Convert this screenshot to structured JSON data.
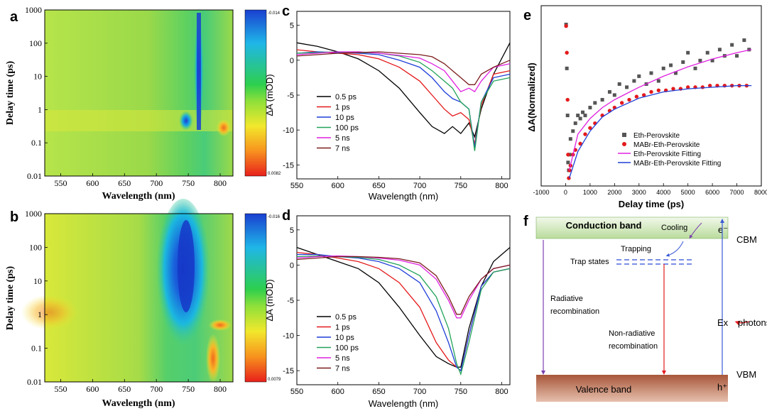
{
  "panels": {
    "a": {
      "letter": "a",
      "xlabel": "Wavelength (nm)",
      "ylabel": "Delay time (ps)",
      "xticks": [
        "550",
        "600",
        "650",
        "700",
        "750",
        "800"
      ],
      "yticks": [
        "1000",
        "100",
        "10",
        "1",
        "0.1",
        "0.01"
      ],
      "colorbar_max": "-0.014",
      "colorbar_min": "0.0082"
    },
    "b": {
      "letter": "b",
      "xlabel": "Wavelength (nm)",
      "ylabel": "Delay time (ps)",
      "xticks": [
        "550",
        "600",
        "650",
        "700",
        "750",
        "800"
      ],
      "yticks": [
        "1000",
        "100",
        "10",
        "1",
        "0.1",
        "0.01"
      ],
      "colorbar_max": "-0.016",
      "colorbar_min": "0.0079"
    },
    "c": {
      "letter": "c",
      "xlabel": "Wavelength (nm)",
      "ylabel": "ΔA (mOD)",
      "xticks": [
        "550",
        "600",
        "650",
        "700",
        "750",
        "800"
      ],
      "yticks": [
        "5",
        "0",
        "-5",
        "-10",
        "-15"
      ]
    },
    "d": {
      "letter": "d",
      "xlabel": "Wavelength (nm)",
      "ylabel": "ΔA (mOD)",
      "xticks": [
        "550",
        "600",
        "650",
        "700",
        "750",
        "800"
      ],
      "yticks": [
        "5",
        "0",
        "-5",
        "-10",
        "-15"
      ]
    },
    "e": {
      "letter": "e",
      "xlabel": "Delay time (ps)",
      "ylabel": "ΔA(Normalized)",
      "xticks": [
        "-1000",
        "0",
        "1000",
        "2000",
        "3000",
        "4000",
        "5000",
        "6000",
        "7000",
        "8000"
      ]
    },
    "f": {
      "letter": "f",
      "conduction_band": "Conduction band",
      "valence_band": "Valence band",
      "cbm": "CBM",
      "vbm": "VBM",
      "cooling": "Cooling",
      "trapping": "Trapping",
      "trap_states": "Trap states",
      "radiative_1": "Radiative",
      "radiative_2": "recombination",
      "nonrad_1": "Non-radiative",
      "nonrad_2": "recombination",
      "ex": "Ex",
      "photons": "photons",
      "electron": "e⁻",
      "hole": "h⁺"
    }
  },
  "colors": {
    "black": "#000000",
    "red": "#e41a1c",
    "blue": "#1f3fd8",
    "green": "#23a35a",
    "magenta": "#e020e0",
    "brown": "#7b1c1c",
    "purple": "#7b3fb0",
    "cb_green": "#cfe7b8",
    "vb_brown": "#c8866a"
  },
  "chart_data": [
    {
      "panel": "a",
      "type": "heatmap",
      "xlabel": "Wavelength (nm)",
      "ylabel": "Delay time (ps)",
      "xlim": [
        525,
        820
      ],
      "ylim": [
        0.01,
        1000
      ],
      "yscale": "log",
      "colorbar_range": [
        -0.014,
        0.0082
      ],
      "features": [
        {
          "label": "bleach band",
          "x_nm": 766,
          "y_range_ps": [
            0.3,
            1000
          ],
          "value": "min"
        },
        {
          "label": "early-time band",
          "x_nm": 750,
          "y_range_ps": [
            0.4,
            1
          ],
          "value": "negative"
        }
      ]
    },
    {
      "panel": "b",
      "type": "heatmap",
      "xlabel": "Wavelength (nm)",
      "ylabel": "Delay time (ps)",
      "xlim": [
        525,
        820
      ],
      "ylim": [
        0.01,
        1000
      ],
      "yscale": "log",
      "colorbar_range": [
        -0.016,
        0.0079
      ],
      "features": [
        {
          "label": "bleach band",
          "x_nm": 748,
          "y_range_ps": [
            0.5,
            1000
          ],
          "value": "min"
        }
      ]
    },
    {
      "panel": "c",
      "type": "line",
      "xlabel": "Wavelength (nm)",
      "ylabel": "ΔA (mOD)",
      "xlim": [
        550,
        810
      ],
      "ylim": [
        -17,
        7
      ],
      "x": [
        550,
        575,
        600,
        625,
        650,
        675,
        700,
        715,
        730,
        740,
        750,
        760,
        767,
        775,
        790,
        810
      ],
      "series": [
        {
          "name": "0.5 ps",
          "values": [
            2.5,
            2.0,
            1.2,
            0.2,
            -1.5,
            -4.0,
            -7.5,
            -9.5,
            -10.5,
            -9.5,
            -10.5,
            -9.0,
            -11.0,
            -7.0,
            -2.0,
            2.5
          ]
        },
        {
          "name": "1 ps",
          "values": [
            1.5,
            1.2,
            1.0,
            0.8,
            0.2,
            -1.0,
            -3.0,
            -5.0,
            -7.0,
            -8.0,
            -7.5,
            -8.5,
            -12.0,
            -6.5,
            -2.0,
            -1.5
          ]
        },
        {
          "name": "10 ps",
          "values": [
            1.0,
            1.2,
            1.1,
            1.0,
            0.8,
            0.0,
            -1.0,
            -2.5,
            -4.5,
            -5.5,
            -6.0,
            -7.0,
            -12.5,
            -6.0,
            -2.5,
            -2.0
          ]
        },
        {
          "name": "100 ps",
          "values": [
            1.0,
            1.1,
            1.2,
            1.1,
            1.0,
            0.6,
            -0.3,
            -1.5,
            -3.0,
            -4.0,
            -6.0,
            -7.0,
            -13.0,
            -6.0,
            -3.0,
            -2.5
          ]
        },
        {
          "name": "5 ns",
          "values": [
            0.8,
            1.0,
            1.2,
            1.2,
            1.0,
            0.7,
            0.3,
            -0.5,
            -1.5,
            -3.0,
            -4.5,
            -4.0,
            -4.5,
            -3.0,
            -1.0,
            -0.5
          ]
        },
        {
          "name": "7 ns",
          "values": [
            0.6,
            0.8,
            1.0,
            1.1,
            1.2,
            1.0,
            0.8,
            0.5,
            -0.5,
            -1.5,
            -2.5,
            -3.5,
            -3.5,
            -2.0,
            -1.0,
            0.0
          ]
        }
      ]
    },
    {
      "panel": "d",
      "type": "line",
      "xlabel": "Wavelength (nm)",
      "ylabel": "ΔA (mOD)",
      "xlim": [
        550,
        810
      ],
      "ylim": [
        -17,
        7
      ],
      "x": [
        550,
        575,
        600,
        625,
        650,
        675,
        700,
        720,
        735,
        745,
        750,
        760,
        775,
        790,
        810
      ],
      "series": [
        {
          "name": "0.5 ps",
          "values": [
            2.5,
            1.5,
            0.5,
            -0.5,
            -2.5,
            -6.0,
            -10.0,
            -13.0,
            -14.0,
            -14.5,
            -14.5,
            -9.0,
            -3.0,
            0.5,
            2.5
          ]
        },
        {
          "name": "1 ps",
          "values": [
            1.8,
            1.5,
            1.0,
            0.5,
            -0.5,
            -2.5,
            -6.0,
            -11.0,
            -13.5,
            -14.5,
            -15.0,
            -10.0,
            -3.0,
            -1.0,
            -0.5
          ]
        },
        {
          "name": "10 ps",
          "values": [
            1.5,
            1.5,
            1.2,
            1.0,
            0.5,
            -0.5,
            -2.5,
            -6.5,
            -11.0,
            -14.5,
            -15.0,
            -10.0,
            -3.0,
            -1.0,
            -0.5
          ]
        },
        {
          "name": "100 ps",
          "values": [
            1.2,
            1.3,
            1.2,
            1.1,
            0.8,
            0.0,
            -1.5,
            -4.5,
            -9.0,
            -14.0,
            -15.5,
            -11.0,
            -3.5,
            -1.0,
            -0.5
          ]
        },
        {
          "name": "5 ns",
          "values": [
            1.0,
            1.2,
            1.3,
            1.2,
            1.0,
            0.7,
            0.0,
            -2.0,
            -5.0,
            -7.5,
            -7.5,
            -5.0,
            -2.0,
            -0.5,
            0.0
          ]
        },
        {
          "name": "7 ns",
          "values": [
            0.8,
            1.0,
            1.2,
            1.2,
            1.1,
            0.9,
            0.3,
            -1.5,
            -4.5,
            -7.0,
            -7.0,
            -4.5,
            -2.0,
            -0.5,
            0.0
          ]
        }
      ]
    },
    {
      "panel": "e",
      "type": "scatter",
      "xlabel": "Delay time (ps)",
      "ylabel": "ΔA(Normalized)",
      "xlim": [
        -1000,
        8000
      ],
      "ylim": [
        -1.05,
        0.1
      ],
      "series": [
        {
          "name": "Eth-Perovskite",
          "marker": "square",
          "x": [
            20,
            50,
            80,
            100,
            130,
            160,
            200,
            300,
            400,
            500,
            600,
            700,
            800,
            1000,
            1200,
            1500,
            1800,
            2000,
            2200,
            2500,
            2800,
            3000,
            3300,
            3500,
            3800,
            4000,
            4300,
            4500,
            4800,
            5000,
            5300,
            5500,
            5800,
            6000,
            6300,
            6500,
            6800,
            7000,
            7300,
            7500
          ],
          "y": [
            -0.02,
            -0.3,
            -0.6,
            -0.9,
            -0.95,
            -0.85,
            -0.75,
            -0.7,
            -0.65,
            -0.6,
            -0.62,
            -0.58,
            -0.6,
            -0.55,
            -0.52,
            -0.5,
            -0.45,
            -0.47,
            -0.4,
            -0.42,
            -0.38,
            -0.35,
            -0.4,
            -0.33,
            -0.38,
            -0.3,
            -0.28,
            -0.33,
            -0.26,
            -0.2,
            -0.3,
            -0.25,
            -0.2,
            -0.25,
            -0.18,
            -0.22,
            -0.15,
            -0.22,
            -0.12,
            -0.18
          ]
        },
        {
          "name": "MABr-Eth-Perovskite",
          "marker": "circle",
          "x": [
            20,
            50,
            80,
            100,
            130,
            160,
            200,
            300,
            400,
            600,
            800,
            1000,
            1200,
            1500,
            1800,
            2000,
            2300,
            2600,
            2900,
            3200,
            3500,
            3800,
            4100,
            4400,
            4700,
            5000,
            5300,
            5600,
            5900,
            6200,
            6500,
            6800,
            7100,
            7400
          ],
          "y": [
            -0.03,
            -0.2,
            -0.5,
            -0.85,
            -1.0,
            -0.95,
            -0.92,
            -0.85,
            -0.82,
            -0.78,
            -0.72,
            -0.68,
            -0.65,
            -0.6,
            -0.57,
            -0.55,
            -0.52,
            -0.5,
            -0.48,
            -0.47,
            -0.45,
            -0.44,
            -0.44,
            -0.43,
            -0.43,
            -0.42,
            -0.42,
            -0.42,
            -0.41,
            -0.41,
            -0.41,
            -0.41,
            -0.41,
            -0.41
          ]
        },
        {
          "name": "Eth-Perovskite Fitting",
          "marker": "line",
          "x": [
            150,
            500,
            1000,
            1500,
            2000,
            3000,
            4000,
            5000,
            6000,
            7000,
            7600
          ],
          "y": [
            -0.95,
            -0.72,
            -0.62,
            -0.55,
            -0.5,
            -0.42,
            -0.35,
            -0.29,
            -0.24,
            -0.2,
            -0.18
          ]
        },
        {
          "name": "MABr-Eth-Perovskite Fitting",
          "marker": "line",
          "x": [
            150,
            500,
            1000,
            1500,
            2000,
            3000,
            4000,
            5000,
            6000,
            7000,
            7600
          ],
          "y": [
            -1.0,
            -0.83,
            -0.7,
            -0.61,
            -0.56,
            -0.49,
            -0.45,
            -0.43,
            -0.42,
            -0.41,
            -0.41
          ]
        }
      ]
    }
  ]
}
